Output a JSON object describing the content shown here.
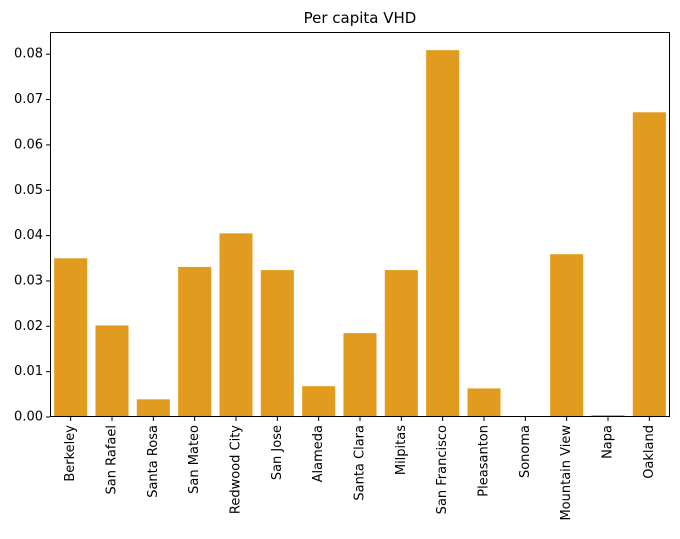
{
  "chart_data": {
    "type": "bar",
    "title": "Per capita VHD",
    "xlabel": "",
    "ylabel": "",
    "categories": [
      "Berkeley",
      "San Rafael",
      "Santa Rosa",
      "San Mateo",
      "Redwood City",
      "San Jose",
      "Alameda",
      "Santa Clara",
      "Milpitas",
      "San Francisco",
      "Pleasanton",
      "Sonoma",
      "Mountain View",
      "Napa",
      "Oakland"
    ],
    "values": [
      0.035,
      0.0202,
      0.0039,
      0.0331,
      0.0405,
      0.0324,
      0.0068,
      0.0185,
      0.0324,
      0.0809,
      0.0063,
      0.0002,
      0.0359,
      0.0004,
      0.0672
    ],
    "ylim": [
      0,
      0.0849
    ],
    "yticks": [
      "0.00",
      "0.01",
      "0.02",
      "0.03",
      "0.04",
      "0.05",
      "0.06",
      "0.07",
      "0.08"
    ],
    "bar_color": "#e19c1f",
    "grid": false,
    "legend": false
  }
}
